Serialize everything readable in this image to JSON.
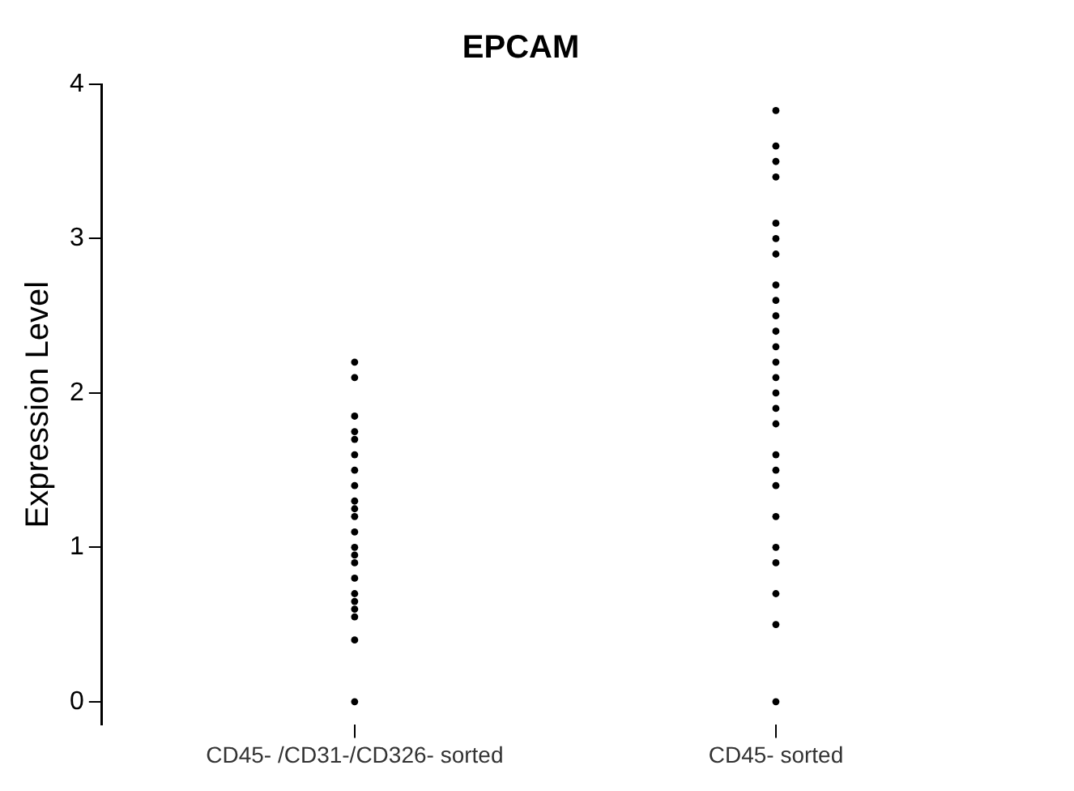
{
  "chart_data": {
    "type": "scatter",
    "title": "EPCAM",
    "ylabel": "Expression Level",
    "categories": [
      "CD45- /CD31-/CD326- sorted",
      "CD45- sorted"
    ],
    "ylim": [
      -0.15,
      4
    ],
    "yticks": [
      0,
      1,
      2,
      3,
      4
    ],
    "grid": false,
    "legend": false,
    "marker": "circle",
    "series": [
      {
        "color": "#000000",
        "x": [
          "CD45- /CD31-/CD326- sorted",
          "CD45- /CD31-/CD326- sorted",
          "CD45- /CD31-/CD326- sorted",
          "CD45- /CD31-/CD326- sorted",
          "CD45- /CD31-/CD326- sorted",
          "CD45- /CD31-/CD326- sorted",
          "CD45- /CD31-/CD326- sorted",
          "CD45- /CD31-/CD326- sorted",
          "CD45- /CD31-/CD326- sorted",
          "CD45- /CD31-/CD326- sorted",
          "CD45- /CD31-/CD326- sorted",
          "CD45- /CD31-/CD326- sorted",
          "CD45- /CD31-/CD326- sorted",
          "CD45- /CD31-/CD326- sorted",
          "CD45- /CD31-/CD326- sorted",
          "CD45- /CD31-/CD326- sorted",
          "CD45- /CD31-/CD326- sorted",
          "CD45- /CD31-/CD326- sorted",
          "CD45- /CD31-/CD326- sorted",
          "CD45- /CD31-/CD326- sorted",
          "CD45- /CD31-/CD326- sorted",
          "CD45- /CD31-/CD326- sorted"
        ],
        "values": [
          0,
          0.4,
          0.6,
          0.7,
          0.8,
          0.9,
          1.0,
          1.1,
          1.2,
          1.3,
          1.4,
          1.5,
          1.6,
          1.7,
          1.75,
          1.85,
          2.1,
          2.2,
          0.55,
          0.65,
          0.95,
          1.25
        ]
      },
      {
        "color": "#000000",
        "x": [
          "CD45- sorted",
          "CD45- sorted",
          "CD45- sorted",
          "CD45- sorted",
          "CD45- sorted",
          "CD45- sorted",
          "CD45- sorted",
          "CD45- sorted",
          "CD45- sorted",
          "CD45- sorted",
          "CD45- sorted",
          "CD45- sorted",
          "CD45- sorted",
          "CD45- sorted",
          "CD45- sorted",
          "CD45- sorted",
          "CD45- sorted",
          "CD45- sorted",
          "CD45- sorted",
          "CD45- sorted",
          "CD45- sorted",
          "CD45- sorted",
          "CD45- sorted",
          "CD45- sorted",
          "CD45- sorted",
          "CD45- sorted"
        ],
        "values": [
          0,
          0.5,
          0.7,
          0.9,
          1.0,
          1.2,
          1.4,
          1.5,
          1.6,
          1.8,
          1.9,
          2.0,
          2.1,
          2.2,
          2.3,
          2.4,
          2.5,
          2.6,
          2.7,
          2.9,
          3.0,
          3.1,
          3.4,
          3.5,
          3.6,
          3.83
        ]
      }
    ]
  }
}
